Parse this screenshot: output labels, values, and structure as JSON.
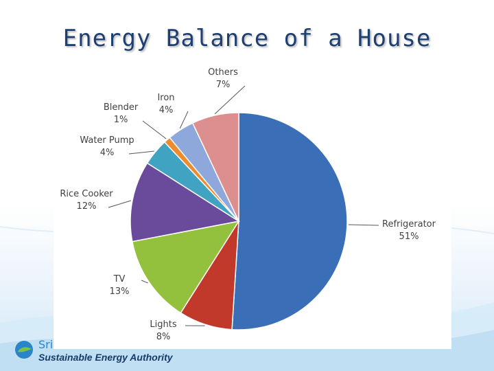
{
  "slide": {
    "title": "Energy Balance of a House"
  },
  "logo": {
    "top_text": "Sri",
    "bottom_text": "Sustainable Energy Authority"
  },
  "colors": {
    "title": "#1f3f6e",
    "logo_blue": "#2a86c8",
    "logo_dark": "#163a6a"
  },
  "chart_data": {
    "type": "pie",
    "title": "",
    "start_category": "Refrigerator",
    "direction": "clockwise",
    "slices": [
      {
        "label": "Refrigerator",
        "percent_label": "51%",
        "value": 51,
        "color": "#3a6fb8"
      },
      {
        "label": "Lights",
        "percent_label": "8%",
        "value": 8,
        "color": "#c0392b"
      },
      {
        "label": "TV",
        "percent_label": "13%",
        "value": 13,
        "color": "#93c13d"
      },
      {
        "label": "Rice Cooker",
        "percent_label": "12%",
        "value": 12,
        "color": "#6a4a9a"
      },
      {
        "label": "Water Pump",
        "percent_label": "4%",
        "value": 4,
        "color": "#3fa3c1"
      },
      {
        "label": "Blender",
        "percent_label": "1%",
        "value": 1,
        "color": "#ee8b2c"
      },
      {
        "label": "Iron",
        "percent_label": "4%",
        "value": 4,
        "color": "#8fa8dc"
      },
      {
        "label": "Others",
        "percent_label": "7%",
        "value": 7,
        "color": "#dd8f8f"
      }
    ]
  }
}
